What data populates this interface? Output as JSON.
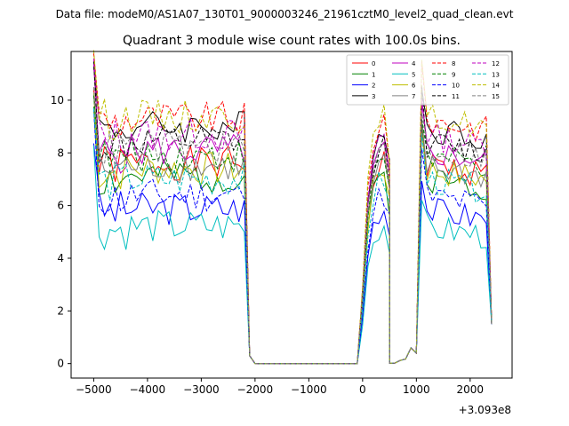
{
  "chart_data": {
    "type": "line",
    "suptitle": "Data file: modeM0/AS1A07_130T01_9000003246_21961cztM0_level2_quad_clean.evt",
    "title": "Quadrant 3 module wise count rates with 100.0s bins.",
    "xlabel": "",
    "ylabel": "",
    "x_offset_label": "+3.093e8",
    "xlim": [
      -5420,
      2780
    ],
    "ylim": [
      -0.55,
      11.85
    ],
    "xticks": [
      -5000,
      -4000,
      -3000,
      -2000,
      -1000,
      0,
      1000,
      2000
    ],
    "xtick_labels": [
      "−5000",
      "−4000",
      "−3000",
      "−2000",
      "−1000",
      "0",
      "1000",
      "2000"
    ],
    "yticks": [
      0,
      2,
      4,
      6,
      8,
      10
    ],
    "ytick_labels": [
      "0",
      "2",
      "4",
      "6",
      "8",
      "10"
    ],
    "grid": false,
    "legend": {
      "placement": "top-right",
      "columns": 4
    },
    "segments": [
      {
        "start": -5000,
        "end": -2100,
        "bins": 30
      },
      {
        "start": -2000,
        "end": -100,
        "bins": 20
      },
      {
        "start": 0,
        "end": 500,
        "bins": 6
      },
      {
        "start": 500,
        "end": 900,
        "bins": 5
      },
      {
        "start": 1000,
        "end": 2400,
        "bins": 15
      }
    ],
    "series": [
      {
        "name": "0",
        "color": "#ff0000",
        "dash": false,
        "level": 7.6,
        "seed": 1
      },
      {
        "name": "1",
        "color": "#008000",
        "dash": false,
        "level": 7.1,
        "seed": 2
      },
      {
        "name": "2",
        "color": "#0000ff",
        "dash": false,
        "level": 5.9,
        "seed": 3
      },
      {
        "name": "3",
        "color": "#000000",
        "dash": false,
        "level": 9.0,
        "seed": 4
      },
      {
        "name": "4",
        "color": "#bf00bf",
        "dash": false,
        "level": 8.1,
        "seed": 5
      },
      {
        "name": "5",
        "color": "#00bfbf",
        "dash": false,
        "level": 5.2,
        "seed": 6
      },
      {
        "name": "6",
        "color": "#bfbf00",
        "dash": false,
        "level": 7.4,
        "seed": 7
      },
      {
        "name": "7",
        "color": "#808080",
        "dash": false,
        "level": 7.5,
        "seed": 8
      },
      {
        "name": "8",
        "color": "#ff0000",
        "dash": true,
        "level": 9.3,
        "seed": 9
      },
      {
        "name": "9",
        "color": "#008000",
        "dash": true,
        "level": 7.9,
        "seed": 10
      },
      {
        "name": "10",
        "color": "#0000ff",
        "dash": true,
        "level": 6.4,
        "seed": 11
      },
      {
        "name": "11",
        "color": "#000000",
        "dash": true,
        "level": 8.4,
        "seed": 12
      },
      {
        "name": "12",
        "color": "#bf00bf",
        "dash": true,
        "level": 8.7,
        "seed": 13
      },
      {
        "name": "13",
        "color": "#00bfbf",
        "dash": true,
        "level": 7.0,
        "seed": 14
      },
      {
        "name": "14",
        "color": "#bfbf00",
        "dash": true,
        "level": 9.4,
        "seed": 15
      },
      {
        "name": "15",
        "color": "#808080",
        "dash": true,
        "level": 8.2,
        "seed": 16
      }
    ]
  }
}
